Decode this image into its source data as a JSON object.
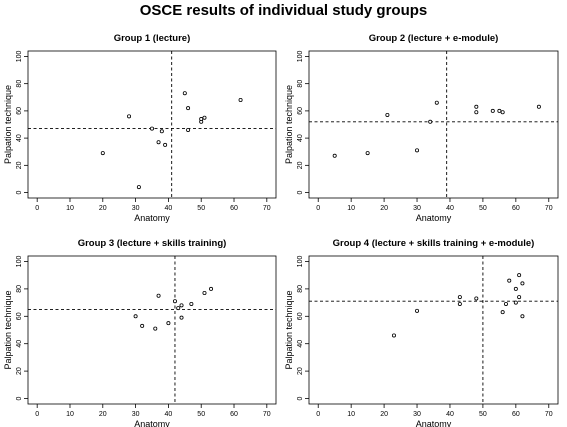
{
  "title": "OSCE results of individual study groups",
  "chart_data": [
    {
      "type": "scatter",
      "title": "Group 1 (lecture)",
      "xlabel": "Anatomy",
      "ylabel": "Palpation technique",
      "xlim": [
        0,
        70
      ],
      "ylim": [
        0,
        100
      ],
      "xticks": [
        0,
        10,
        20,
        30,
        40,
        50,
        60,
        70
      ],
      "yticks": [
        0,
        20,
        40,
        60,
        80,
        100
      ],
      "grid": false,
      "vline": 41,
      "hline": 47,
      "x": [
        20,
        31,
        28,
        35,
        37,
        38,
        39,
        45,
        46,
        46,
        50,
        50,
        51,
        62
      ],
      "y": [
        29,
        4,
        56,
        47,
        37,
        45,
        35,
        73,
        62,
        46,
        52,
        54,
        55,
        68
      ]
    },
    {
      "type": "scatter",
      "title": "Group 2 (lecture + e-module)",
      "xlabel": "Anatomy",
      "ylabel": "Palpation technique",
      "xlim": [
        0,
        70
      ],
      "ylim": [
        0,
        100
      ],
      "xticks": [
        0,
        10,
        20,
        30,
        40,
        50,
        60,
        70
      ],
      "yticks": [
        0,
        20,
        40,
        60,
        80,
        100
      ],
      "grid": false,
      "vline": 39,
      "hline": 52,
      "x": [
        5,
        15,
        21,
        30,
        34,
        36,
        48,
        48,
        53,
        55,
        56,
        67
      ],
      "y": [
        27,
        29,
        57,
        31,
        52,
        66,
        59,
        63,
        60,
        60,
        59,
        63
      ]
    },
    {
      "type": "scatter",
      "title": "Group 3 (lecture + skills training)",
      "xlabel": "Anatomy",
      "ylabel": "Palpation technique",
      "xlim": [
        0,
        70
      ],
      "ylim": [
        0,
        100
      ],
      "xticks": [
        0,
        10,
        20,
        30,
        40,
        50,
        60,
        70
      ],
      "yticks": [
        0,
        20,
        40,
        60,
        80,
        100
      ],
      "grid": false,
      "vline": 42,
      "hline": 65,
      "x": [
        30,
        32,
        36,
        37,
        40,
        42,
        43,
        44,
        44,
        47,
        51,
        53
      ],
      "y": [
        60,
        53,
        51,
        75,
        55,
        71,
        66,
        68,
        59,
        69,
        77,
        80
      ]
    },
    {
      "type": "scatter",
      "title": "Group 4 (lecture + skills training + e-module)",
      "xlabel": "Anatomy",
      "ylabel": "Palpation technique",
      "xlim": [
        0,
        70
      ],
      "ylim": [
        0,
        100
      ],
      "xticks": [
        0,
        10,
        20,
        30,
        40,
        50,
        60,
        70
      ],
      "yticks": [
        0,
        20,
        40,
        60,
        80,
        100
      ],
      "grid": false,
      "vline": 50,
      "hline": 71,
      "x": [
        23,
        30,
        43,
        43,
        48,
        56,
        57,
        58,
        60,
        60,
        61,
        61,
        62,
        62
      ],
      "y": [
        46,
        64,
        69,
        74,
        73,
        63,
        69,
        86,
        70,
        80,
        90,
        74,
        84,
        60
      ]
    }
  ]
}
